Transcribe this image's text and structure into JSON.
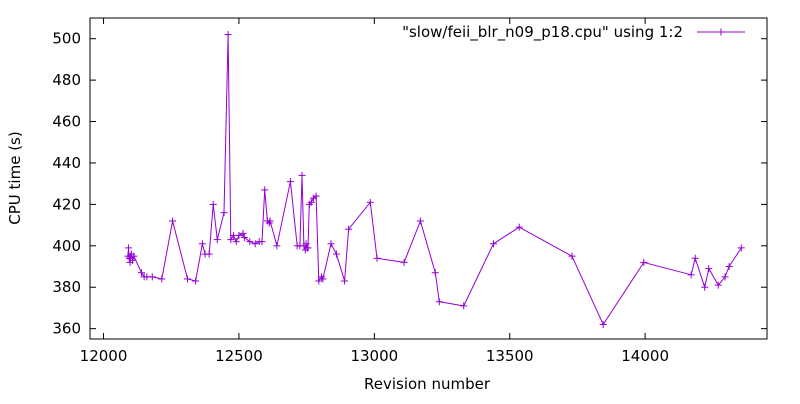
{
  "chart_data": {
    "type": "line",
    "title": "",
    "xlabel": "Revision number",
    "ylabel": "CPU time (s)",
    "xlim": [
      11950,
      14450
    ],
    "ylim": [
      355,
      510
    ],
    "xticks": [
      12000,
      12500,
      13000,
      13500,
      14000
    ],
    "yticks": [
      360,
      380,
      400,
      420,
      440,
      460,
      480,
      500
    ],
    "grid": false,
    "legend_position": "top-right",
    "series": [
      {
        "name": "\"slow/feii_blr_n09_p18.cpu\" using 1:2",
        "color": "#9400d3",
        "marker": "plus",
        "x": [
          12090,
          12092,
          12095,
          12098,
          12100,
          12103,
          12107,
          12112,
          12140,
          12150,
          12160,
          12180,
          12215,
          12255,
          12310,
          12340,
          12365,
          12375,
          12390,
          12405,
          12420,
          12445,
          12460,
          12470,
          12480,
          12490,
          12500,
          12515,
          12520,
          12540,
          12560,
          12575,
          12585,
          12595,
          12605,
          12612,
          12615,
          12640,
          12690,
          12715,
          12725,
          12733,
          12740,
          12745,
          12748,
          12752,
          12755,
          12760,
          12767,
          12775,
          12785,
          12795,
          12805,
          12810,
          12840,
          12860,
          12890,
          12905,
          12985,
          13010,
          13110,
          13170,
          13225,
          13240,
          13330,
          13440,
          13535,
          13730,
          13845,
          13995,
          14170,
          14185,
          14220,
          14235,
          14270,
          14295,
          14310,
          14355
        ],
        "y": [
          395,
          399,
          394,
          392,
          395,
          396,
          393,
          395,
          387,
          385,
          385,
          385,
          384,
          412,
          384,
          383,
          401,
          396,
          396,
          420,
          403,
          416,
          502,
          403,
          405,
          402,
          405,
          406,
          404,
          402,
          401,
          402,
          402,
          427,
          412,
          411,
          412,
          400,
          431,
          400,
          400,
          434,
          400,
          398,
          401,
          399,
          399,
          420,
          421,
          423,
          424,
          383,
          385,
          384,
          401,
          396,
          383,
          408,
          421,
          394,
          392,
          412,
          387,
          373,
          371,
          401,
          409,
          395,
          362,
          392,
          386,
          394,
          380,
          389,
          381,
          385,
          390,
          399
        ]
      }
    ]
  }
}
